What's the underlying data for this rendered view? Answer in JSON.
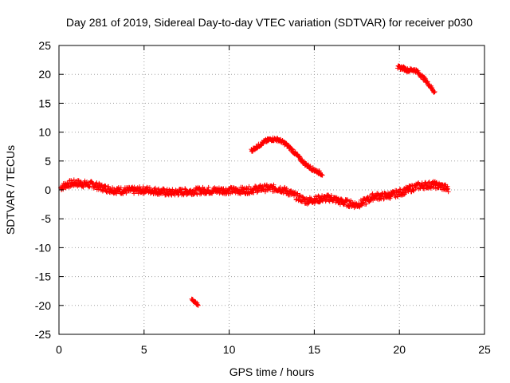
{
  "chart_data": {
    "type": "scatter",
    "title": "Day 281 of 2019, Sidereal Day-to-day VTEC variation (SDTVAR) for receiver p030",
    "xlabel": "GPS time / hours",
    "ylabel": "SDTVAR / TECUs",
    "xlim": [
      0,
      25
    ],
    "ylim": [
      -25,
      25
    ],
    "xticks": [
      "0",
      "5",
      "10",
      "15",
      "20",
      "25"
    ],
    "yticks": [
      "25",
      "20",
      "15",
      "10",
      "5",
      "0",
      "-5",
      "-10",
      "-15",
      "-20",
      "-25"
    ],
    "grid": true,
    "marker": "plus",
    "series": [
      {
        "name": "main-band",
        "color": "#ff0000",
        "spread": 0.6,
        "points": [
          [
            0.1,
            0.4
          ],
          [
            0.5,
            1.0
          ],
          [
            1.0,
            1.2
          ],
          [
            1.5,
            1.0
          ],
          [
            2.0,
            0.9
          ],
          [
            2.5,
            0.4
          ],
          [
            3.0,
            0.1
          ],
          [
            3.5,
            -0.1
          ],
          [
            4.0,
            -0.1
          ],
          [
            4.5,
            -0.1
          ],
          [
            5.0,
            0.0
          ],
          [
            5.5,
            -0.1
          ],
          [
            6.0,
            -0.3
          ],
          [
            6.5,
            -0.5
          ],
          [
            7.0,
            -0.4
          ],
          [
            7.5,
            -0.3
          ],
          [
            8.0,
            -0.2
          ],
          [
            8.5,
            -0.1
          ],
          [
            9.0,
            -0.1
          ],
          [
            9.5,
            -0.1
          ],
          [
            10.0,
            -0.1
          ],
          [
            10.5,
            -0.1
          ],
          [
            11.0,
            -0.1
          ],
          [
            11.5,
            0.1
          ],
          [
            12.0,
            0.3
          ],
          [
            12.5,
            0.3
          ],
          [
            13.0,
            0.2
          ],
          [
            13.5,
            -0.4
          ],
          [
            14.0,
            -1.2
          ],
          [
            14.5,
            -1.9
          ],
          [
            15.0,
            -1.7
          ],
          [
            15.5,
            -1.5
          ],
          [
            16.0,
            -1.4
          ],
          [
            16.5,
            -2.0
          ],
          [
            17.0,
            -2.3
          ],
          [
            17.5,
            -2.6
          ],
          [
            18.0,
            -2.0
          ],
          [
            18.5,
            -1.1
          ],
          [
            19.0,
            -1.1
          ],
          [
            19.5,
            -0.9
          ],
          [
            20.0,
            -0.5
          ],
          [
            20.5,
            0.0
          ],
          [
            21.0,
            0.6
          ],
          [
            21.5,
            0.8
          ],
          [
            22.0,
            0.9
          ],
          [
            22.5,
            0.6
          ],
          [
            22.9,
            0.1
          ]
        ]
      },
      {
        "name": "arc-segment",
        "color": "#ff0000",
        "spread": 0.3,
        "points": [
          [
            11.3,
            6.8
          ],
          [
            11.7,
            7.6
          ],
          [
            12.1,
            8.4
          ],
          [
            12.5,
            8.8
          ],
          [
            12.9,
            8.7
          ],
          [
            13.3,
            8.0
          ],
          [
            13.7,
            6.9
          ],
          [
            14.1,
            5.6
          ],
          [
            14.5,
            4.4
          ],
          [
            14.9,
            3.6
          ],
          [
            15.3,
            3.0
          ],
          [
            15.5,
            2.7
          ]
        ]
      },
      {
        "name": "high-segment",
        "color": "#ff0000",
        "spread": 0.3,
        "points": [
          [
            19.9,
            21.2
          ],
          [
            20.2,
            21.1
          ],
          [
            20.5,
            20.7
          ],
          [
            20.8,
            20.8
          ],
          [
            21.0,
            20.6
          ],
          [
            21.2,
            20.0
          ],
          [
            21.5,
            19.1
          ],
          [
            21.8,
            18.0
          ],
          [
            22.1,
            16.8
          ]
        ]
      },
      {
        "name": "low-segment",
        "color": "#ff0000",
        "spread": 0.2,
        "points": [
          [
            7.8,
            -18.9
          ],
          [
            8.0,
            -19.5
          ],
          [
            8.2,
            -20.0
          ]
        ]
      }
    ]
  }
}
